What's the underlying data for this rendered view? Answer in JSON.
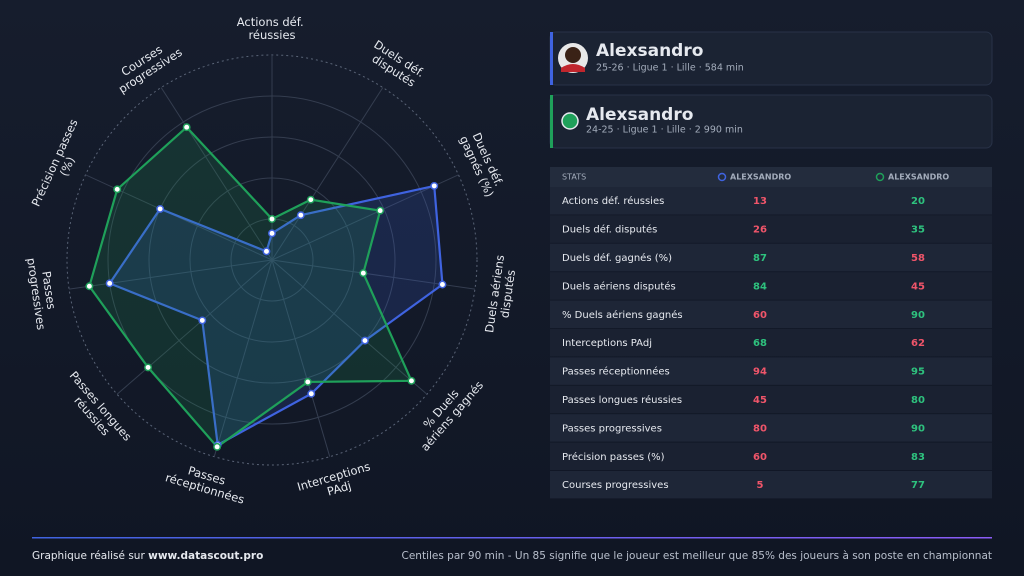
{
  "chart_data": {
    "type": "radar",
    "categories": [
      "Actions déf. réussies",
      "Duels déf. disputés",
      "Duels déf. gagnés (%)",
      "Duels aériens disputés",
      "% Duels aériens gagnés",
      "Interceptions PAdj",
      "Passes réceptionnées",
      "Passes longues réussies",
      "Passes progressives",
      "Précision passes (%)",
      "Courses progressives"
    ],
    "series": [
      {
        "name": "Alexsandro",
        "color": "#3f63e0",
        "values": [
          13,
          26,
          87,
          84,
          60,
          68,
          94,
          45,
          80,
          60,
          5
        ]
      },
      {
        "name": "Alexsandro",
        "color": "#1fa05a",
        "values": [
          20,
          35,
          58,
          45,
          90,
          62,
          95,
          80,
          90,
          83,
          77
        ]
      }
    ],
    "rlim": [
      0,
      100
    ],
    "rticks": [
      20,
      40,
      60,
      80,
      100
    ]
  },
  "players": [
    {
      "subtitle": "25-26 · Ligue 1 · Lille · 584 min"
    },
    {
      "subtitle": "24-25 · Ligue 1 · Lille · 2 990 min"
    }
  ],
  "table": {
    "header": [
      "STATS",
      "ALEXSANDRO",
      "ALEXSANDRO"
    ]
  },
  "footer": {
    "left": "Graphique réalisé sur",
    "site": "www.datascout.pro",
    "right": "Centiles par 90 min - Un 85 signifie que le joueur est meilleur que 85% des joueurs à son poste en championnat"
  }
}
